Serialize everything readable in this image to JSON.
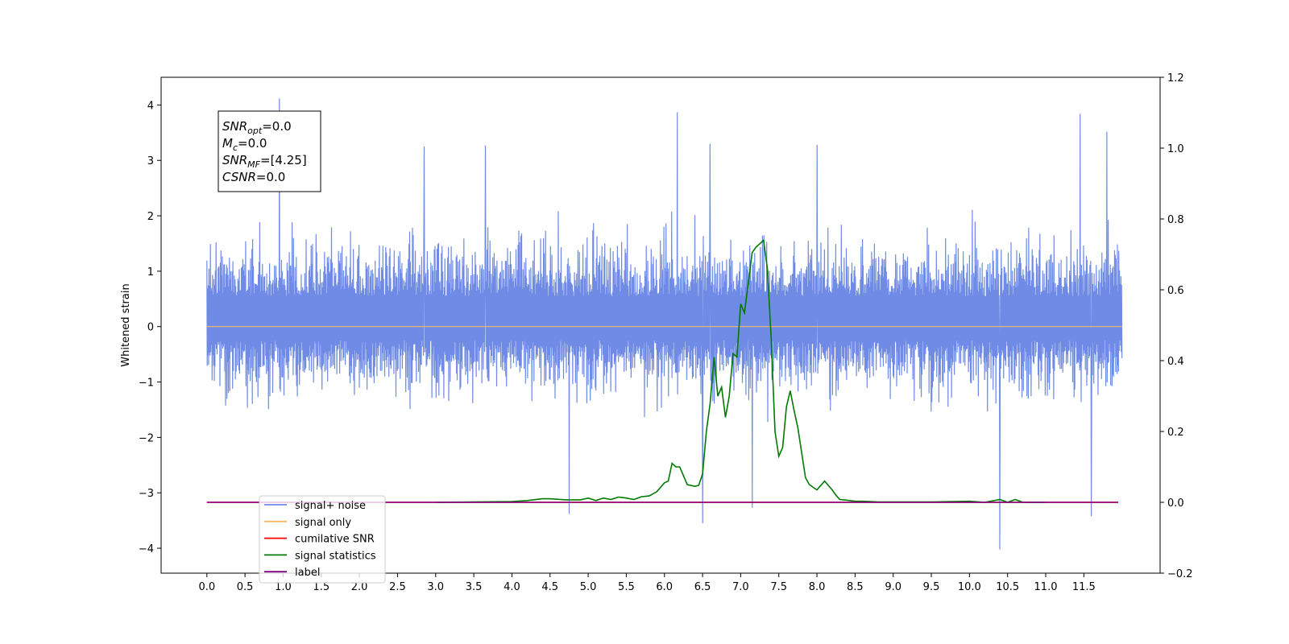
{
  "chart_data": {
    "type": "line",
    "ylabel": "Whitened strain",
    "xlim": [
      -0.6,
      12.5
    ],
    "x_ticks": [
      "0.0",
      "0.5",
      "1.0",
      "1.5",
      "2.0",
      "2.5",
      "3.0",
      "3.5",
      "4.0",
      "4.5",
      "5.0",
      "5.5",
      "6.0",
      "6.5",
      "7.0",
      "7.5",
      "8.0",
      "8.5",
      "9.0",
      "9.5",
      "10.0",
      "10.5",
      "11.0",
      "11.5"
    ],
    "ylim_left": [
      -4.45,
      4.5
    ],
    "y_ticks_left": [
      "4",
      "3",
      "2",
      "1",
      "0",
      "−1",
      "−2",
      "−3",
      "−4"
    ],
    "ylim_right": [
      -0.2,
      1.2
    ],
    "y_ticks_right": [
      "1.2",
      "1.0",
      "0.8",
      "0.6",
      "0.4",
      "0.2",
      "0.0",
      "−0.2"
    ],
    "grid": false,
    "legend_placement": "bottom-left",
    "annotation": {
      "lines": [
        {
          "sym": "SNR",
          "sub": "opt",
          "rest": "=0.0"
        },
        {
          "sym": "M",
          "sub": "c",
          "rest": "=0.0"
        },
        {
          "sym": "SNR",
          "sub": "MF",
          "rest": "=[4.25]"
        },
        {
          "sym": "CSNR",
          "sub": "",
          "rest": "=0.0"
        }
      ]
    },
    "series": [
      {
        "name": "signal+ noise",
        "color": "#6f8be6",
        "axis": "left",
        "x_range": [
          0.0,
          12.0
        ],
        "envelope_typical": [
          -1.6,
          1.9
        ],
        "notable_peaks": [
          {
            "x": 0.95,
            "y": 4.12
          },
          {
            "x": 2.85,
            "y": 3.25
          },
          {
            "x": 3.65,
            "y": 3.27
          },
          {
            "x": 6.17,
            "y": 3.87
          },
          {
            "x": 6.6,
            "y": 3.3
          },
          {
            "x": 8.0,
            "y": 3.28
          },
          {
            "x": 11.45,
            "y": 3.84
          },
          {
            "x": 11.8,
            "y": 3.52
          }
        ],
        "notable_troughs": [
          {
            "x": 4.75,
            "y": -3.38
          },
          {
            "x": 6.5,
            "y": -3.55
          },
          {
            "x": 7.15,
            "y": -3.27
          },
          {
            "x": 10.4,
            "y": -4.02
          },
          {
            "x": 11.6,
            "y": -3.42
          }
        ]
      },
      {
        "name": "signal only",
        "color": "#f5b968",
        "axis": "left",
        "x": [
          0.0,
          12.0
        ],
        "y": [
          0.0,
          0.0
        ]
      },
      {
        "name": "cumilative SNR",
        "color": "#ff0000",
        "axis": "right",
        "x": [
          0.0,
          11.95
        ],
        "y": [
          0.0,
          0.0
        ]
      },
      {
        "name": "signal statistics",
        "color": "#007a00",
        "axis": "right",
        "x": [
          3.0,
          4.0,
          4.2,
          4.4,
          4.5,
          4.7,
          4.9,
          5.0,
          5.1,
          5.2,
          5.3,
          5.4,
          5.5,
          5.6,
          5.7,
          5.8,
          5.9,
          6.0,
          6.05,
          6.1,
          6.15,
          6.2,
          6.3,
          6.4,
          6.45,
          6.5,
          6.55,
          6.6,
          6.65,
          6.7,
          6.75,
          6.8,
          6.85,
          6.9,
          6.95,
          7.0,
          7.05,
          7.1,
          7.15,
          7.2,
          7.25,
          7.3,
          7.35,
          7.4,
          7.45,
          7.5,
          7.55,
          7.6,
          7.65,
          7.7,
          7.75,
          7.8,
          7.85,
          7.9,
          8.0,
          8.1,
          8.2,
          8.25,
          8.3,
          8.4,
          8.5,
          8.6,
          8.7,
          8.8,
          9.0,
          9.5,
          10.0,
          10.2,
          10.4,
          10.5,
          10.6,
          10.7,
          11.0
        ],
        "y": [
          0.0,
          0.002,
          0.005,
          0.01,
          0.01,
          0.007,
          0.007,
          0.012,
          0.005,
          0.012,
          0.008,
          0.015,
          0.012,
          0.008,
          0.016,
          0.018,
          0.03,
          0.055,
          0.06,
          0.11,
          0.1,
          0.1,
          0.05,
          0.045,
          0.048,
          0.08,
          0.2,
          0.28,
          0.41,
          0.3,
          0.325,
          0.24,
          0.3,
          0.42,
          0.41,
          0.56,
          0.535,
          0.62,
          0.705,
          0.72,
          0.73,
          0.74,
          0.66,
          0.46,
          0.2,
          0.13,
          0.155,
          0.27,
          0.315,
          0.26,
          0.21,
          0.14,
          0.07,
          0.05,
          0.035,
          0.06,
          0.035,
          0.02,
          0.008,
          0.006,
          0.003,
          0.003,
          0.002,
          0.001,
          0.001,
          0.001,
          0.003,
          0.0,
          0.008,
          0.0,
          0.008,
          0.0,
          0.0
        ]
      },
      {
        "name": "label",
        "color": "#800080",
        "axis": "right",
        "x": [
          0.0,
          11.95
        ],
        "y": [
          0.0,
          0.0
        ]
      }
    ]
  }
}
